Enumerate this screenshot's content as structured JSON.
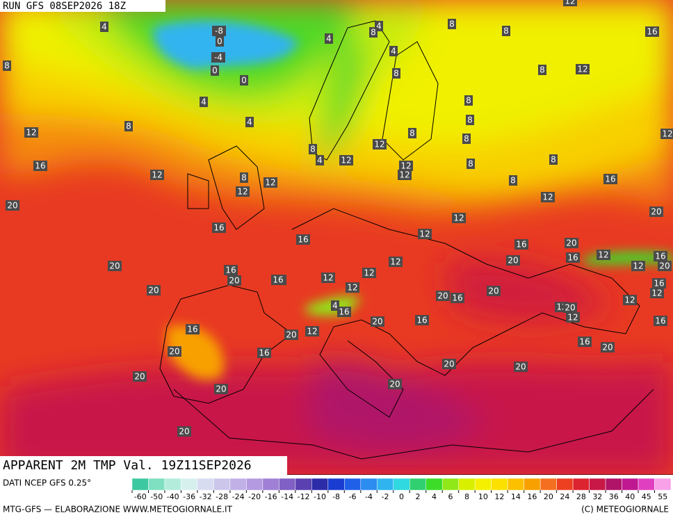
{
  "header": {
    "run": "RUN GFS 08SEP2026 18Z",
    "field": "APPARENT 2M TMP Val. 19Z11SEP2026"
  },
  "map_labels": [
    4,
    8,
    4,
    8,
    8,
    16,
    4,
    8,
    4,
    8,
    8,
    12,
    0,
    0,
    -4,
    0,
    -8,
    4,
    4,
    8,
    12,
    8,
    8,
    8,
    8,
    12,
    12,
    8,
    4,
    12,
    16,
    12,
    8,
    12,
    12,
    12,
    12,
    8,
    8,
    8,
    16,
    20,
    12,
    20,
    16,
    12,
    12,
    16,
    16,
    20,
    12,
    16,
    16,
    20,
    12,
    20,
    20,
    12,
    16,
    12,
    16,
    20,
    16,
    12,
    12,
    16,
    20,
    20,
    12,
    20,
    16,
    4,
    12,
    12,
    20,
    16,
    12,
    20,
    16,
    16,
    12,
    20,
    16,
    16,
    20,
    20,
    16,
    20,
    20,
    20,
    20,
    20,
    20,
    12
  ],
  "colorbar": {
    "ticks": [
      -60,
      -50,
      -40,
      -36,
      -32,
      -28,
      -24,
      -20,
      -16,
      -14,
      -12,
      -10,
      -8,
      -6,
      -4,
      -2,
      0,
      2,
      4,
      6,
      8,
      10,
      12,
      14,
      16,
      20,
      24,
      28,
      32,
      36,
      40,
      45,
      55
    ],
    "colors": [
      "#3cc8a0",
      "#7ee0c0",
      "#b4ecdc",
      "#d6f0ee",
      "#d8dcf0",
      "#cbc6ea",
      "#c0b0e6",
      "#b49ae0",
      "#a080d6",
      "#8060c4",
      "#5a40b0",
      "#2c2ca8",
      "#1a3cd0",
      "#2060e8",
      "#2c8cf0",
      "#30b4f0",
      "#30d8e0",
      "#30d070",
      "#3cdc28",
      "#90e818",
      "#d8f000",
      "#f4f000",
      "#fce000",
      "#fcc000",
      "#f8a000",
      "#f47020",
      "#ec4020",
      "#dc2430",
      "#c81848",
      "#b01468",
      "#c01890",
      "#e040c0",
      "#f8a0e8"
    ]
  },
  "footer": {
    "source": "DATI NCEP GFS 0.25°",
    "credit": "MTG-GFS — ELABORAZIONE WWW.METEOGIORNALE.IT",
    "copyright": "(C) METEOGIORNALE"
  }
}
